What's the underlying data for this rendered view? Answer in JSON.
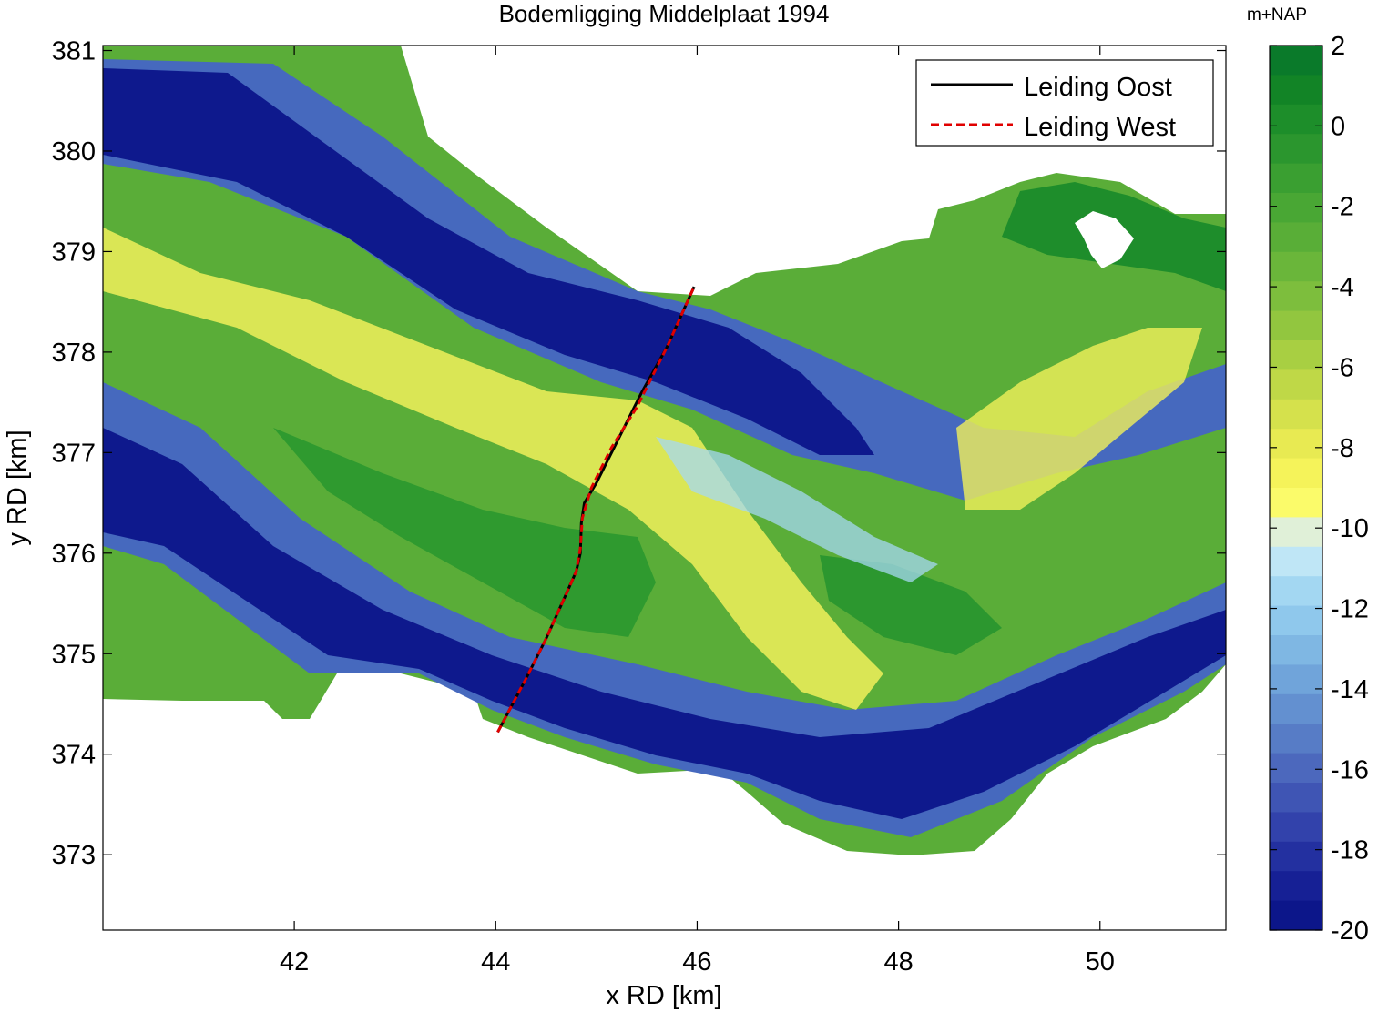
{
  "chart_data": {
    "type": "heatmap",
    "title": "Bodemligging Middelplaat 1994",
    "xlabel": "x RD [km]",
    "ylabel": "y RD [km]",
    "xlim": [
      40.1,
      51.25
    ],
    "ylim": [
      372.25,
      381.05
    ],
    "xticks": [
      42,
      44,
      46,
      48,
      50
    ],
    "yticks": [
      373,
      374,
      375,
      376,
      377,
      378,
      379,
      380,
      381
    ],
    "grid": false,
    "legend_position": "top-right",
    "colormap_note": "green (shallow) → yellow → light blue → dark blue (deep)",
    "series": [
      {
        "name": "Leiding Oost",
        "style": "solid",
        "color": "#000000",
        "x": [
          44.02,
          44.3,
          44.5,
          44.68,
          44.8,
          44.84,
          44.85,
          44.88,
          45.0,
          45.2,
          45.45,
          45.7,
          45.97
        ],
        "y": [
          374.22,
          374.75,
          375.15,
          375.55,
          375.82,
          376.0,
          376.3,
          376.5,
          376.7,
          377.1,
          377.6,
          378.05,
          378.65
        ]
      },
      {
        "name": "Leiding West",
        "style": "dashed",
        "color": "#e00000",
        "x": [
          44.02,
          44.3,
          44.5,
          44.68,
          44.8,
          44.84,
          44.86,
          44.95,
          45.15,
          45.4,
          45.7,
          45.97
        ],
        "y": [
          374.22,
          374.75,
          375.15,
          375.55,
          375.82,
          376.05,
          376.35,
          376.65,
          377.05,
          377.45,
          378.05,
          378.65
        ]
      }
    ],
    "colorbar": {
      "label": "m+NAP",
      "range": [
        -20,
        2
      ],
      "ticks": [
        2,
        0,
        -2,
        -4,
        -6,
        -8,
        -10,
        -12,
        -14,
        -16,
        -18,
        -20
      ],
      "colors": [
        "#0a7a2a",
        "#128426",
        "#1d8e2a",
        "#2b962e",
        "#3a9f31",
        "#49a734",
        "#59ae37",
        "#6ab63a",
        "#7dbe3d",
        "#92c63f",
        "#a8cf42",
        "#bfd847",
        "#d5e14c",
        "#e8ea52",
        "#f5f35a",
        "#fbfb6a",
        "#e0f0d8",
        "#bfe6f6",
        "#a3d7f2",
        "#8fc8ec",
        "#7fb7e3",
        "#70a4da",
        "#6390d0",
        "#577cc6",
        "#4c68bd",
        "#3f55b4",
        "#3242ab",
        "#2330a0",
        "#162095",
        "#0c168a"
      ]
    }
  }
}
